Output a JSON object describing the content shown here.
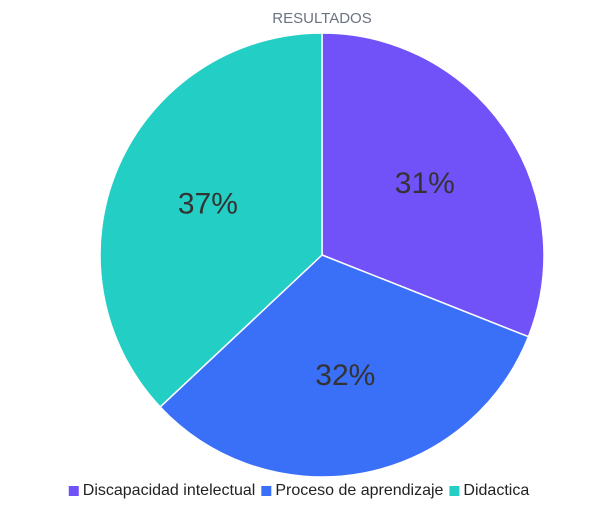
{
  "chart_data": {
    "type": "pie",
    "title": "RESULTADOS",
    "categories": [
      "Discapacidad intelectual",
      "Proceso de aprendizaje",
      "Didactica"
    ],
    "values": [
      31,
      32,
      37
    ],
    "value_labels": [
      "31%",
      "32%",
      "37%"
    ],
    "colors": [
      "#7152f9",
      "#3a6ff8",
      "#23cfc4"
    ],
    "legend": "bottom"
  }
}
